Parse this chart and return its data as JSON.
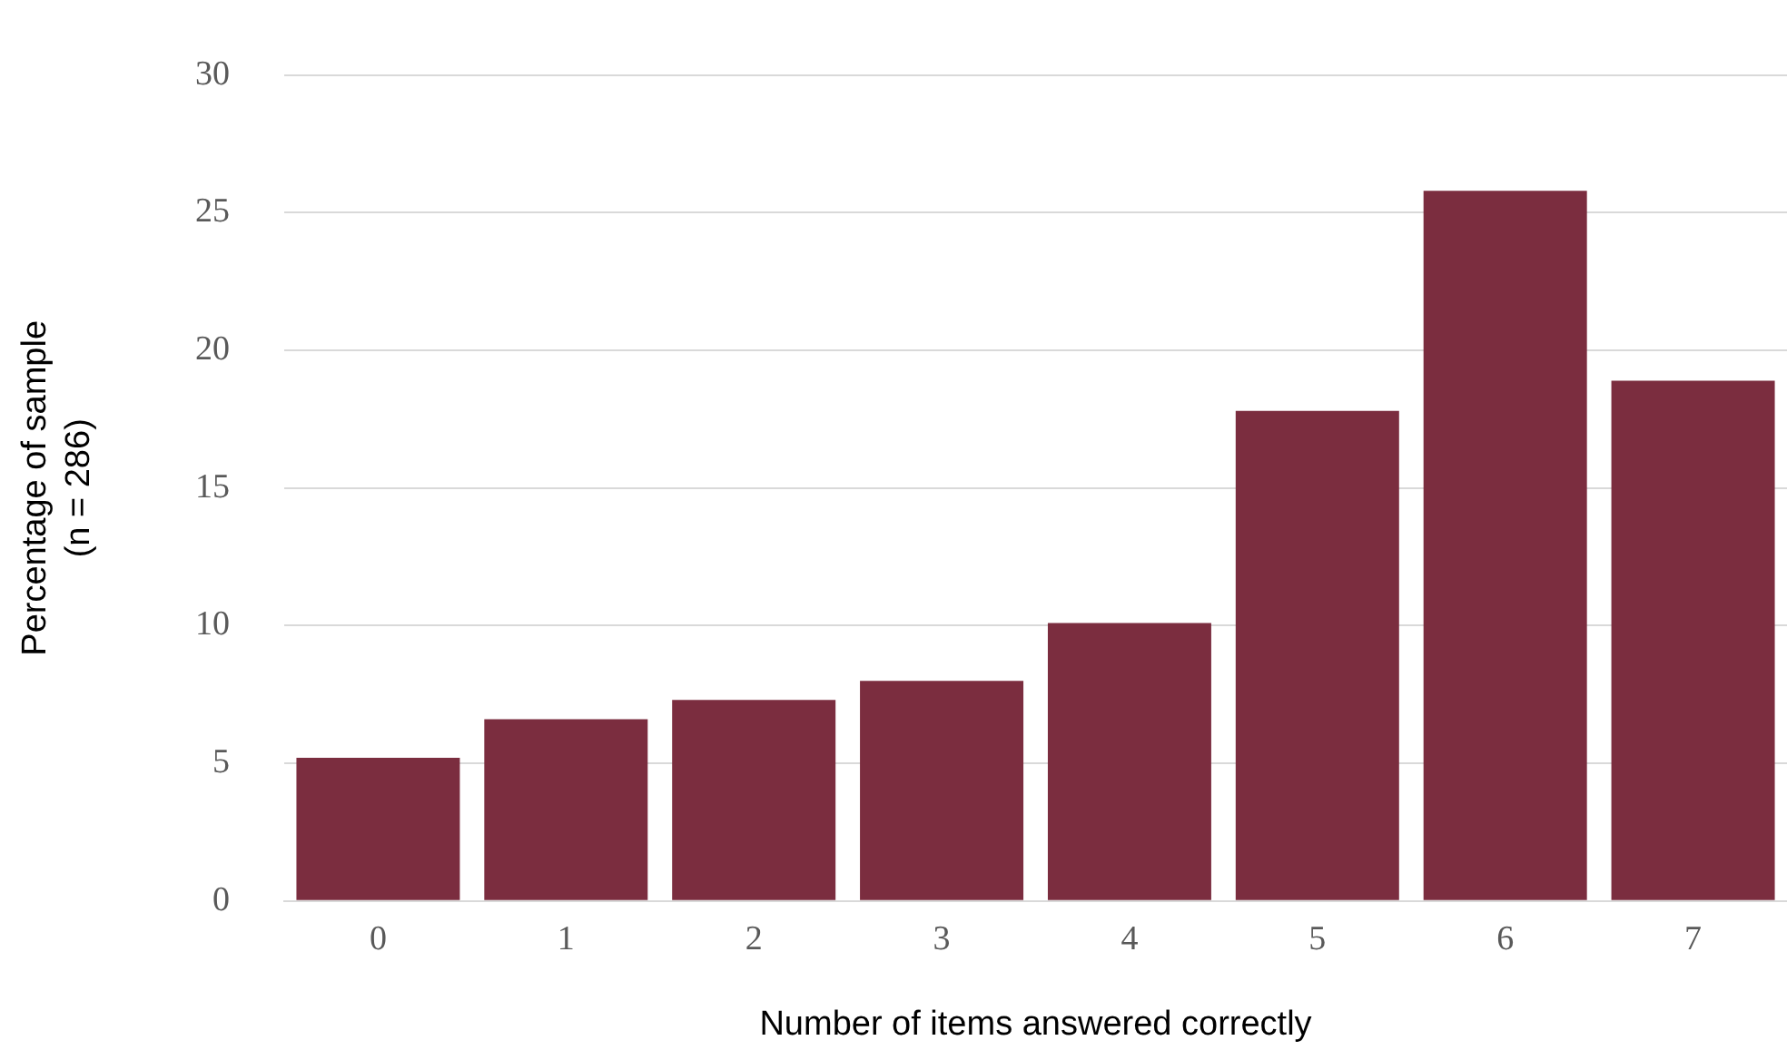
{
  "chart_data": {
    "type": "bar",
    "xlabel": "Number of items answered correctly",
    "ylabel": "Percentage of sample\n(n = 286)",
    "categories": [
      "0",
      "1",
      "2",
      "3",
      "4",
      "5",
      "6",
      "7"
    ],
    "values": [
      5.2,
      6.6,
      7.3,
      8.0,
      10.1,
      17.8,
      25.8,
      18.9
    ],
    "color": "#7b2d3f",
    "ylim": [
      0,
      30
    ],
    "yticks": [
      0,
      5,
      10,
      15,
      20,
      25,
      30
    ],
    "grid": "y",
    "legend": false
  }
}
